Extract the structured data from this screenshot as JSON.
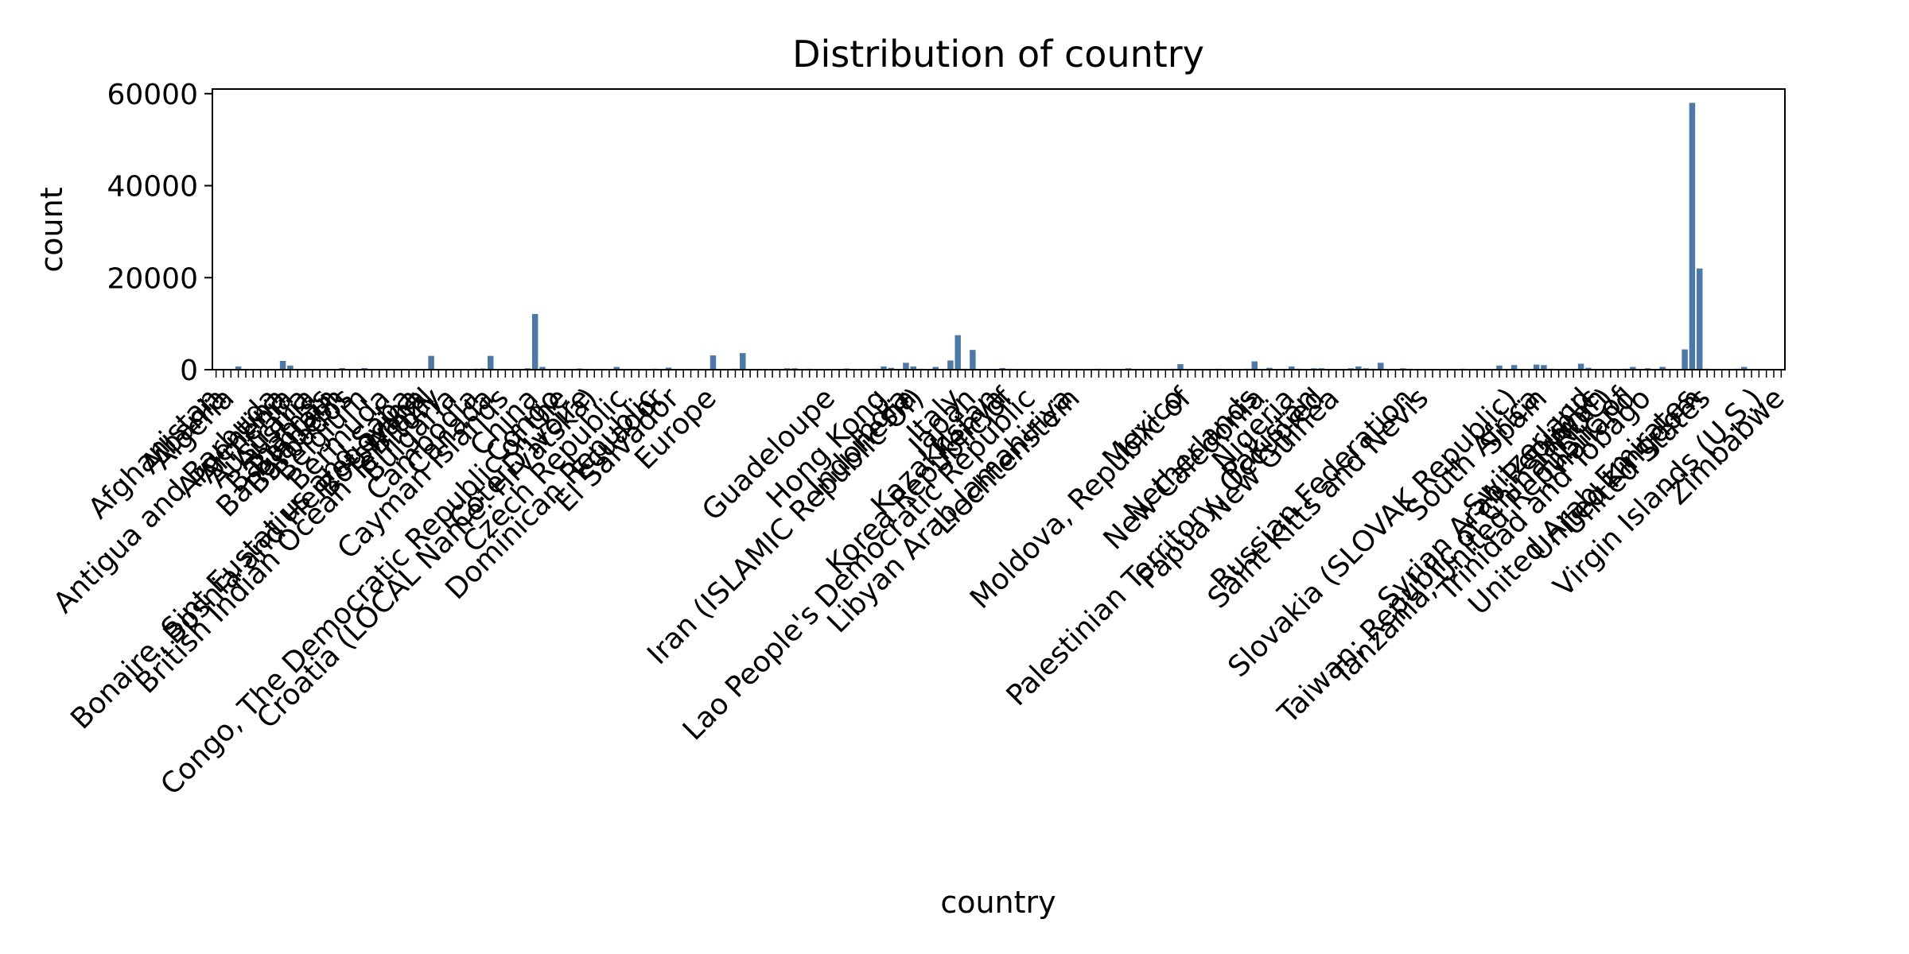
{
  "chart_data": {
    "type": "bar",
    "title": "Distribution of country",
    "xlabel": "country",
    "ylabel": "count",
    "ylim": [
      0,
      61000
    ],
    "yticks": [
      0,
      20000,
      40000,
      60000
    ],
    "bar_color": "#4e79a7",
    "grid": false,
    "categories": [
      "Afghanistan",
      "Albania",
      "Algeria",
      "American Samoa",
      "Andorra",
      "Angola",
      "Anguilla",
      "Antarctica",
      "Antigua and Barbuda",
      "Argentina",
      "Armenia",
      "Aruba",
      "Australia",
      "Austria",
      "Azerbaijan",
      "Bahamas",
      "Bahrain",
      "Bangladesh",
      "Barbados",
      "Belarus",
      "Belgium",
      "Belize",
      "Benin",
      "Bermuda",
      "Bhutan",
      "Bolivia",
      "Bonaire, Sint Eustatius and Saba",
      "Bosnia and Herzegovina",
      "Botswana",
      "Brazil",
      "British Indian Ocean Territory",
      "Brunei Darussalam",
      "Bulgaria",
      "Burkina Faso",
      "Burundi",
      "Cambodia",
      "Cameroon",
      "Canada",
      "Cape Verde",
      "Cayman Islands",
      "Central African Republic",
      "Chad",
      "Chile",
      "China",
      "Colombia",
      "Comoros",
      "Congo",
      "Congo, The Democratic Republic of the",
      "Cook Islands",
      "Costa Rica",
      "Cote D'Ivoire",
      "Croatia (LOCAL Name: Hrvatska)",
      "Cuba",
      "Curacao",
      "Cyprus",
      "Czech Republic",
      "Denmark",
      "Djibouti",
      "Dominica",
      "Dominican Republic",
      "Ecuador",
      "Egypt",
      "El Salvador",
      "Equatorial Guinea",
      "Eritrea",
      "Estonia",
      "Ethiopia",
      "Europe",
      "Faroe Islands",
      "Fiji",
      "Finland",
      "France",
      "French Guiana",
      "French Polynesia",
      "Gabon",
      "Gambia",
      "Georgia",
      "Germany",
      "Ghana",
      "Gibraltar",
      "Greece",
      "Greenland",
      "Grenada",
      "Guadeloupe",
      "Guam",
      "Guatemala",
      "Guinea",
      "Guyana",
      "Haiti",
      "Honduras",
      "Hong Kong",
      "Hungary",
      "Iceland",
      "India",
      "Indonesia",
      "Iran (ISLAMIC Republic Of)",
      "Iraq",
      "Ireland",
      "Isle of Man",
      "Israel",
      "Italy",
      "Jamaica",
      "Japan",
      "Jersey",
      "Jordan",
      "Kazakhstan",
      "Kenya",
      "Korea Republic of",
      "Kuwait",
      "Kyrgyzstan",
      "Lao People's Democratic Republic",
      "Latvia",
      "Lebanon",
      "Lesotho",
      "Liberia",
      "Libyan Arab Jamahiriya",
      "Liechtenstein",
      "Lithuania",
      "Luxembourg",
      "Macau",
      "Macedonia",
      "Madagascar",
      "Malawi",
      "Malaysia",
      "Maldives",
      "Mali",
      "Malta",
      "Martinique",
      "Mauritania",
      "Mauritius",
      "Mexico",
      "Moldova, Republic of",
      "Monaco",
      "Mongolia",
      "Montenegro",
      "Morocco",
      "Mozambique",
      "Myanmar",
      "Namibia",
      "Nepal",
      "Netherlands",
      "New Caledonia",
      "New Zealand",
      "Nicaragua",
      "Niger",
      "Nigeria",
      "Norway",
      "Oman",
      "Pakistan",
      "Palestinian Territory, Occupied",
      "Panama",
      "Papua New Guinea",
      "Paraguay",
      "Peru",
      "Philippines",
      "Poland",
      "Portugal",
      "Puerto Rico",
      "Qatar",
      "Reunion",
      "Romania",
      "Russian Federation",
      "Rwanda",
      "Saint Kitts and Nevis",
      "Saint Lucia",
      "Saint Martin",
      "Samoa",
      "San Marino",
      "Saudi Arabia",
      "Senegal",
      "Serbia",
      "Seychelles",
      "Sierra Leone",
      "Singapore",
      "Sint Maarten",
      "Slovakia (SLOVAK Republic)",
      "Slovenia",
      "Somalia",
      "South Africa",
      "Spain",
      "Sri Lanka",
      "Sudan",
      "Suriname",
      "Swaziland",
      "Sweden",
      "Switzerland",
      "Syrian Arab Republic",
      "Taiwan",
      "Taiwan; Republic of China (ROC)",
      "Tajikistan",
      "Tanzania, United Republic of",
      "Thailand",
      "Togo",
      "Trinidad and Tobago",
      "Tunisia",
      "Turkey",
      "Turkmenistan",
      "Uganda",
      "Ukraine",
      "United Arab Emirates",
      "United Kingdom",
      "United States",
      "Uruguay",
      "Uzbekistan",
      "Vanuatu",
      "Venezuela",
      "Vietnam",
      "Virgin Islands (British)",
      "Virgin Islands (U.S.)",
      "Yemen",
      "Zambia",
      "Zimbabwe"
    ],
    "values": [
      70,
      60,
      40,
      700,
      30,
      120,
      30,
      20,
      40,
      1900,
      900,
      40,
      60,
      90,
      120,
      50,
      80,
      350,
      40,
      150,
      350,
      60,
      50,
      40,
      30,
      60,
      60,
      80,
      40,
      3000,
      30,
      80,
      150,
      50,
      40,
      200,
      250,
      3000,
      40,
      80,
      30,
      30,
      300,
      12100,
      600,
      20,
      40,
      40,
      30,
      250,
      180,
      150,
      60,
      40,
      600,
      150,
      120,
      30,
      40,
      200,
      150,
      450,
      150,
      20,
      20,
      100,
      150,
      3100,
      20,
      40,
      200,
      3600,
      40,
      30,
      60,
      40,
      150,
      300,
      300,
      40,
      200,
      30,
      40,
      100,
      60,
      250,
      40,
      60,
      80,
      200,
      700,
      400,
      150,
      1500,
      700,
      200,
      100,
      600,
      40,
      2000,
      7500,
      200,
      4300,
      30,
      150,
      100,
      350,
      200,
      100,
      50,
      150,
      100,
      150,
      40,
      40,
      150,
      30,
      100,
      150,
      200,
      100,
      60,
      40,
      300,
      40,
      40,
      100,
      60,
      40,
      200,
      1200,
      100,
      40,
      40,
      50,
      200,
      40,
      80,
      50,
      200,
      1800,
      60,
      400,
      100,
      50,
      700,
      200,
      80,
      300,
      300,
      100,
      100,
      100,
      300,
      700,
      300,
      200,
      1500,
      100,
      80,
      300,
      200,
      60,
      40,
      50,
      60,
      40,
      40,
      200,
      100,
      150,
      40,
      60,
      900,
      60,
      1000,
      150,
      40,
      1100,
      1000,
      200,
      100,
      50,
      40,
      1300,
      400,
      100,
      150,
      150,
      40,
      200,
      600,
      60,
      300,
      100,
      600,
      80,
      100,
      4400,
      58000,
      22000,
      200,
      60,
      80,
      40,
      200,
      600,
      40,
      100,
      60,
      60,
      60
    ],
    "visible_xtick_labels": [
      "Afghanistan",
      "Albania",
      "Algeria",
      "Antigua and Barbuda",
      "Argentina",
      "Armenia",
      "Australia",
      "Austria",
      "Bahamas",
      "Bahrain",
      "Bangladesh",
      "Barbados",
      "Belgium",
      "Bermuda",
      "Bonaire, Sint Eustatius and Saba",
      "Bosnia and Herzegovina",
      "Botswana",
      "Brazil",
      "British Indian Ocean Territory",
      "Bulgaria",
      "Cambodia",
      "Canada",
      "Cayman Islands",
      "China",
      "Cote D'Ivoire",
      "Congo",
      "Congo, The Democratic Republic of the",
      "Croatia (LOCAL Name: Hrvatska)",
      "Czech Republic",
      "Dominican Republic",
      "Ecuador",
      "El Salvador",
      "Europe",
      "Guadeloupe",
      "Hong Kong",
      "India",
      "Indonesia",
      "Iran (ISLAMIC Republic Of)",
      "Italy",
      "Japan",
      "Kazakhstan",
      "Kenya",
      "Korea Republic of",
      "Lao People's Democratic Republic",
      "Libyan Arab Jamahiriya",
      "Liechtenstein",
      "Mexico",
      "Moldova, Republic of",
      "Netherlands",
      "New Caledonia",
      "Nigeria",
      "Pakistan",
      "Papua New Guinea",
      "Palestinian Territory, Occupied",
      "Russian Federation",
      "Saint Kitts and Nevis",
      "Slovakia (SLOVAK Republic)",
      "South Africa",
      "Spain",
      "Switzerland",
      "Syrian Arab Republic",
      "Taiwan",
      "Taiwan; Republic of China (ROC)",
      "Tanzania, United Republic of",
      "Thailand",
      "Trinidad and Tobago",
      "United Arab Emirates",
      "United Kingdom",
      "United States",
      "Virgin Islands (U.S.)",
      "Zimbabwe"
    ]
  }
}
